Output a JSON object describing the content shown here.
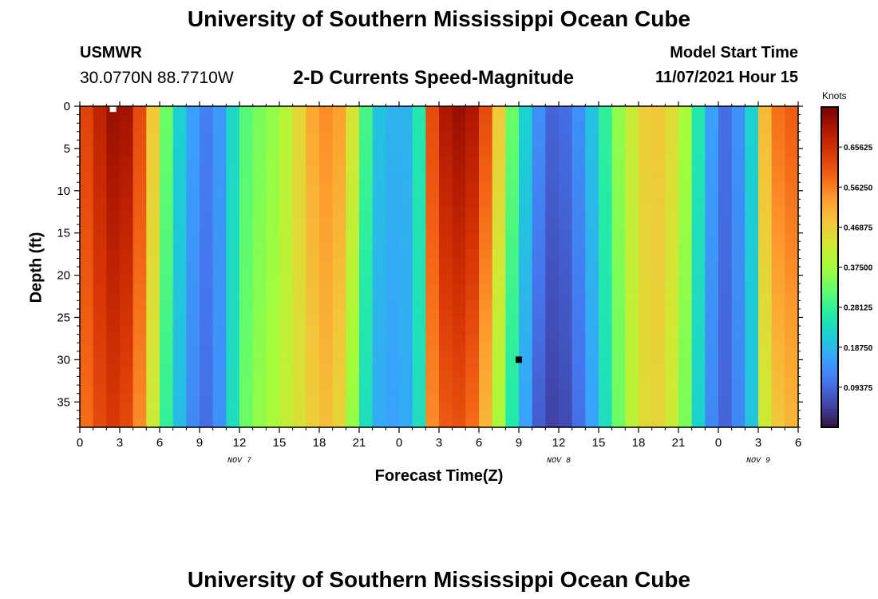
{
  "header": {
    "title": "University of Southern Mississippi Ocean Cube",
    "station": "USMWR",
    "coordinates": "30.0770N  88.7710W",
    "subtitle": "2-D Currents Speed-Magnitude",
    "model_start_label": "Model Start Time",
    "model_start_value": "11/07/2021 Hour 15"
  },
  "footer": {
    "title": "University of Southern Mississippi Ocean Cube"
  },
  "chart_data": {
    "type": "heatmap",
    "xlabel": "Forecast Time(Z)",
    "ylabel": "Depth (ft)",
    "colorbar_label": "Knots",
    "x_range_hours": [
      0,
      54
    ],
    "y_range_ft": [
      0,
      38
    ],
    "y_inverted": true,
    "x_tick_labels": [
      "0",
      "3",
      "6",
      "9",
      "12",
      "15",
      "18",
      "21",
      "0",
      "3",
      "6",
      "9",
      "12",
      "15",
      "18",
      "21",
      "0",
      "3",
      "6"
    ],
    "y_ticks": [
      0,
      5,
      10,
      15,
      20,
      25,
      30,
      35
    ],
    "date_labels": [
      {
        "label": "NOV 7",
        "hour": 12
      },
      {
        "label": "NOV 8",
        "hour": 36
      },
      {
        "label": "NOV 9",
        "hour": 51
      }
    ],
    "colorbar": {
      "min": 0.0,
      "max": 0.75,
      "tick_values": [
        0.09375,
        0.1875,
        0.28125,
        0.375,
        0.46875,
        0.5625,
        0.65625
      ],
      "tick_labels": [
        "0.09375",
        "0.18750",
        "0.28125",
        "0.37500",
        "0.46875",
        "0.56250",
        "0.65625"
      ],
      "palette": [
        "#30123b",
        "#4145ab",
        "#4675ed",
        "#39a2fc",
        "#1bcfd4",
        "#24eca6",
        "#61fc6c",
        "#a4fc3b",
        "#d1e834",
        "#f3c63a",
        "#fe9b2d",
        "#f36315",
        "#d93806",
        "#b11901",
        "#7a0403"
      ]
    },
    "time_profile_hours": [
      0,
      1,
      2,
      3,
      4,
      5,
      6,
      7,
      8,
      9,
      10,
      11,
      12,
      13,
      14,
      15,
      16,
      17,
      18,
      19,
      20,
      21,
      22,
      23,
      24,
      25,
      26,
      27,
      28,
      29,
      30,
      31,
      32,
      33,
      34,
      35,
      36,
      37,
      38,
      39,
      40,
      41,
      42,
      43,
      44,
      45,
      46,
      47,
      48,
      49,
      50,
      51,
      52,
      53
    ],
    "speed_surface_knots": [
      0.63,
      0.68,
      0.72,
      0.71,
      0.62,
      0.48,
      0.33,
      0.22,
      0.16,
      0.12,
      0.15,
      0.23,
      0.31,
      0.34,
      0.36,
      0.4,
      0.46,
      0.52,
      0.55,
      0.53,
      0.44,
      0.3,
      0.2,
      0.18,
      0.18,
      0.26,
      0.62,
      0.7,
      0.72,
      0.7,
      0.62,
      0.48,
      0.33,
      0.22,
      0.14,
      0.09,
      0.1,
      0.14,
      0.2,
      0.28,
      0.36,
      0.42,
      0.47,
      0.48,
      0.45,
      0.38,
      0.26,
      0.16,
      0.1,
      0.14,
      0.22,
      0.5,
      0.58,
      0.6
    ],
    "speed_bottom_knots": [
      0.58,
      0.62,
      0.64,
      0.62,
      0.55,
      0.42,
      0.28,
      0.19,
      0.13,
      0.1,
      0.14,
      0.24,
      0.33,
      0.36,
      0.38,
      0.41,
      0.44,
      0.47,
      0.49,
      0.46,
      0.36,
      0.24,
      0.17,
      0.16,
      0.17,
      0.24,
      0.55,
      0.6,
      0.61,
      0.58,
      0.5,
      0.38,
      0.26,
      0.16,
      0.08,
      0.05,
      0.06,
      0.1,
      0.16,
      0.24,
      0.33,
      0.4,
      0.45,
      0.46,
      0.42,
      0.34,
      0.22,
      0.13,
      0.09,
      0.13,
      0.2,
      0.42,
      0.48,
      0.5
    ],
    "markers": [
      {
        "hour": 2.5,
        "depth": 0.3,
        "color": "#ffffff"
      },
      {
        "hour": 33.0,
        "depth": 30.0,
        "color": "#000000"
      }
    ]
  }
}
